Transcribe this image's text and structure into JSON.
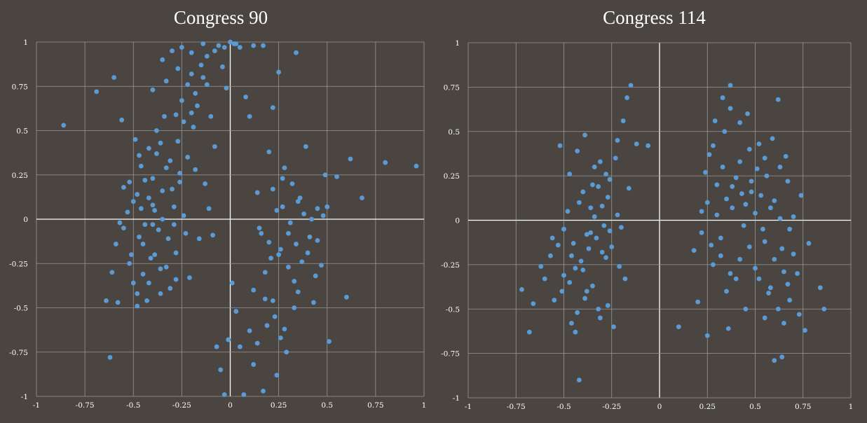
{
  "colors": {
    "background": "#4a4541",
    "grid": "#9b9692",
    "axis_zero": "#ffffff",
    "point": "#5b9bd5",
    "text": "#ffffff"
  },
  "chart_data": [
    {
      "type": "scatter",
      "title": "Congress 90",
      "xlim": [
        -1,
        1
      ],
      "ylim": [
        -1,
        1
      ],
      "x_ticks": [
        -1,
        -0.75,
        -0.5,
        -0.25,
        0,
        0.25,
        0.5,
        0.75,
        1
      ],
      "x_tick_labels": [
        "-1",
        "-0.75",
        "-0.5",
        "-0.25",
        "0",
        "0.25",
        "0.5",
        "0.75",
        "1"
      ],
      "y_ticks": [
        -1,
        -0.75,
        -0.5,
        -0.25,
        0,
        0.25,
        0.5,
        0.75,
        1
      ],
      "y_tick_labels": [
        "-1",
        "-0.75",
        "-0.5",
        "-0.25",
        "0",
        "0.25",
        "0.5",
        "0.75",
        "1"
      ],
      "grid": true,
      "points": [
        [
          -0.86,
          0.53
        ],
        [
          -0.69,
          0.72
        ],
        [
          -0.6,
          0.8
        ],
        [
          -0.62,
          -0.78
        ],
        [
          -0.64,
          -0.46
        ],
        [
          -0.61,
          -0.3
        ],
        [
          -0.59,
          -0.14
        ],
        [
          -0.55,
          -0.05
        ],
        [
          -0.56,
          0.56
        ],
        [
          -0.58,
          -0.47
        ],
        [
          -0.52,
          0.21
        ],
        [
          -0.5,
          0.1
        ],
        [
          -0.49,
          0.45
        ],
        [
          -0.47,
          -0.1
        ],
        [
          -0.45,
          -0.31
        ],
        [
          -0.43,
          -0.46
        ],
        [
          -0.4,
          0.23
        ],
        [
          -0.38,
          0.37
        ],
        [
          -0.36,
          -0.28
        ],
        [
          -0.34,
          0.58
        ],
        [
          -0.32,
          -0.11
        ],
        [
          -0.3,
          0.17
        ],
        [
          -0.28,
          -0.19
        ],
        [
          -0.27,
          0.44
        ],
        [
          -0.25,
          0.67
        ],
        [
          -0.24,
          0.02
        ],
        [
          -0.21,
          -0.33
        ],
        [
          -0.2,
          0.82
        ],
        [
          -0.18,
          0.28
        ],
        [
          -0.16,
          -0.11
        ],
        [
          -0.14,
          0.99
        ],
        [
          -0.12,
          0.76
        ],
        [
          -0.1,
          0.58
        ],
        [
          -0.08,
          0.41
        ],
        [
          -0.06,
          0.98
        ],
        [
          -0.04,
          0.86
        ],
        [
          -0.02,
          0.74
        ],
        [
          0.02,
          0.99
        ],
        [
          0.05,
          0.97
        ],
        [
          0.08,
          0.69
        ],
        [
          0.1,
          0.58
        ],
        [
          0.12,
          0.98
        ],
        [
          0.17,
          0.98
        ],
        [
          0.22,
          0.63
        ],
        [
          0.25,
          0.83
        ],
        [
          0.34,
          0.94
        ],
        [
          -0.55,
          0.18
        ],
        [
          -0.53,
          0.04
        ],
        [
          -0.51,
          -0.2
        ],
        [
          -0.5,
          -0.36
        ],
        [
          -0.48,
          -0.42
        ],
        [
          -0.46,
          0.3
        ],
        [
          -0.44,
          -0.03
        ],
        [
          -0.42,
          0.12
        ],
        [
          -0.41,
          -0.22
        ],
        [
          -0.39,
          0.05
        ],
        [
          -0.37,
          -0.06
        ],
        [
          -0.35,
          0.16
        ],
        [
          -0.33,
          0.29
        ],
        [
          -0.31,
          -0.39
        ],
        [
          -0.29,
          0.07
        ],
        [
          -0.26,
          0.21
        ],
        [
          -0.23,
          -0.08
        ],
        [
          -0.22,
          0.35
        ],
        [
          -0.19,
          0.52
        ],
        [
          -0.17,
          0.64
        ],
        [
          -0.13,
          0.2
        ],
        [
          -0.11,
          0.06
        ],
        [
          -0.09,
          -0.09
        ],
        [
          -0.07,
          -0.72
        ],
        [
          -0.05,
          -0.85
        ],
        [
          -0.03,
          -0.99
        ],
        [
          -0.01,
          -0.68
        ],
        [
          0.01,
          -0.36
        ],
        [
          0.03,
          -0.52
        ],
        [
          0.05,
          -0.72
        ],
        [
          0.07,
          -0.99
        ],
        [
          0.1,
          -0.63
        ],
        [
          0.12,
          -0.4
        ],
        [
          0.14,
          0.15
        ],
        [
          0.16,
          -0.08
        ],
        [
          0.18,
          -0.3
        ],
        [
          0.2,
          0.38
        ],
        [
          0.22,
          -0.46
        ],
        [
          0.24,
          0.05
        ],
        [
          0.26,
          -0.17
        ],
        [
          0.27,
          0.23
        ],
        [
          0.29,
          -0.75
        ],
        [
          0.31,
          -0.02
        ],
        [
          0.33,
          -0.35
        ],
        [
          0.35,
          0.1
        ],
        [
          0.37,
          -0.24
        ],
        [
          0.39,
          0.41
        ],
        [
          0.41,
          -0.1
        ],
        [
          0.43,
          -0.47
        ],
        [
          0.45,
          0.06
        ],
        [
          0.47,
          -0.26
        ],
        [
          0.49,
          0.25
        ],
        [
          0.51,
          -0.69
        ],
        [
          0.55,
          0.24
        ],
        [
          0.6,
          -0.44
        ],
        [
          0.62,
          0.34
        ],
        [
          0.68,
          0.12
        ],
        [
          0.8,
          0.32
        ],
        [
          0.96,
          0.3
        ],
        [
          -0.35,
          0.9
        ],
        [
          -0.3,
          0.95
        ],
        [
          -0.25,
          0.97
        ],
        [
          -0.2,
          0.94
        ],
        [
          -0.15,
          0.87
        ],
        [
          -0.12,
          0.92
        ],
        [
          -0.08,
          0.95
        ],
        [
          -0.03,
          0.97
        ],
        [
          0.0,
          1.0
        ],
        [
          0.03,
          0.99
        ],
        [
          -0.4,
          0.73
        ],
        [
          -0.33,
          0.78
        ],
        [
          -0.27,
          0.85
        ],
        [
          -0.22,
          0.76
        ],
        [
          -0.18,
          0.71
        ],
        [
          -0.14,
          0.8
        ],
        [
          -0.28,
          0.59
        ],
        [
          -0.24,
          0.55
        ],
        [
          -0.2,
          0.6
        ],
        [
          -0.38,
          0.5
        ],
        [
          -0.42,
          0.4
        ],
        [
          -0.47,
          0.36
        ],
        [
          -0.36,
          0.43
        ],
        [
          -0.31,
          0.33
        ],
        [
          -0.26,
          0.26
        ],
        [
          -0.44,
          0.22
        ],
        [
          -0.48,
          0.14
        ],
        [
          -0.4,
          0.08
        ],
        [
          -0.35,
          0.0
        ],
        [
          -0.29,
          -0.03
        ],
        [
          -0.45,
          -0.14
        ],
        [
          -0.39,
          -0.2
        ],
        [
          -0.33,
          -0.27
        ],
        [
          -0.28,
          -0.34
        ],
        [
          -0.52,
          -0.25
        ],
        [
          -0.48,
          -0.49
        ],
        [
          -0.42,
          -0.36
        ],
        [
          -0.36,
          -0.42
        ],
        [
          -0.57,
          -0.02
        ],
        [
          -0.46,
          0.06
        ],
        [
          -0.4,
          -0.03
        ],
        [
          0.15,
          -0.05
        ],
        [
          0.2,
          -0.13
        ],
        [
          0.25,
          -0.2
        ],
        [
          0.3,
          -0.27
        ],
        [
          0.35,
          -0.41
        ],
        [
          0.4,
          -0.19
        ],
        [
          0.45,
          -0.12
        ],
        [
          0.22,
          0.17
        ],
        [
          0.28,
          0.29
        ],
        [
          0.32,
          0.2
        ],
        [
          0.36,
          0.12
        ],
        [
          0.42,
          0.0
        ],
        [
          0.18,
          -0.45
        ],
        [
          0.23,
          -0.55
        ],
        [
          0.28,
          -0.62
        ],
        [
          0.33,
          -0.5
        ],
        [
          0.19,
          -0.6
        ],
        [
          0.14,
          -0.7
        ],
        [
          0.24,
          -0.88
        ],
        [
          0.12,
          -0.82
        ],
        [
          0.17,
          -0.97
        ],
        [
          0.26,
          -0.67
        ],
        [
          0.3,
          -0.08
        ],
        [
          0.27,
          0.07
        ],
        [
          0.21,
          -0.22
        ],
        [
          0.34,
          -0.14
        ],
        [
          0.38,
          0.03
        ],
        [
          0.44,
          -0.32
        ],
        [
          0.48,
          0.02
        ],
        [
          0.5,
          0.07
        ]
      ]
    },
    {
      "type": "scatter",
      "title": "Congress 114",
      "xlim": [
        -1,
        1
      ],
      "ylim": [
        -1,
        1
      ],
      "x_ticks": [
        -1,
        -0.75,
        -0.5,
        -0.25,
        0,
        0.25,
        0.5,
        0.75,
        1
      ],
      "x_tick_labels": [
        "-1",
        "-0.75",
        "-0.5",
        "-0.25",
        "0",
        "0.25",
        "0.5",
        "0.75",
        "1"
      ],
      "y_ticks": [
        -1,
        -0.75,
        -0.5,
        -0.25,
        0,
        0.25,
        0.5,
        0.75,
        1
      ],
      "y_tick_labels": [
        "-1",
        "-0.75",
        "-0.5",
        "-0.25",
        "0",
        "0.25",
        "0.5",
        "0.75",
        "1"
      ],
      "grid": true,
      "points": [
        [
          -0.72,
          -0.39
        ],
        [
          -0.68,
          -0.63
        ],
        [
          -0.66,
          -0.47
        ],
        [
          -0.62,
          -0.26
        ],
        [
          -0.6,
          -0.33
        ],
        [
          -0.57,
          -0.2
        ],
        [
          -0.55,
          -0.45
        ],
        [
          -0.53,
          -0.14
        ],
        [
          -0.5,
          -0.31
        ],
        [
          -0.48,
          0.05
        ],
        [
          -0.46,
          -0.58
        ],
        [
          -0.44,
          -0.27
        ],
        [
          -0.42,
          -0.9
        ],
        [
          -0.4,
          0.16
        ],
        [
          -0.38,
          -0.4
        ],
        [
          -0.36,
          -0.07
        ],
        [
          -0.34,
          0.3
        ],
        [
          -0.32,
          -0.5
        ],
        [
          -0.3,
          0.08
        ],
        [
          -0.28,
          -0.21
        ],
        [
          -0.26,
          0.23
        ],
        [
          -0.24,
          -0.6
        ],
        [
          -0.22,
          0.45
        ],
        [
          -0.2,
          -0.04
        ],
        [
          -0.17,
          0.69
        ],
        [
          -0.15,
          0.76
        ],
        [
          -0.12,
          0.43
        ],
        [
          -0.06,
          0.42
        ],
        [
          -0.52,
          0.42
        ],
        [
          -0.47,
          0.26
        ],
        [
          -0.43,
          0.39
        ],
        [
          -0.39,
          0.48
        ],
        [
          -0.35,
          0.2
        ],
        [
          -0.31,
          0.33
        ],
        [
          -0.27,
          0.13
        ],
        [
          -0.23,
          0.35
        ],
        [
          -0.19,
          0.56
        ],
        [
          -0.16,
          0.18
        ],
        [
          -0.56,
          -0.1
        ],
        [
          -0.5,
          -0.05
        ],
        [
          -0.45,
          -0.13
        ],
        [
          -0.41,
          -0.23
        ],
        [
          -0.37,
          -0.16
        ],
        [
          -0.33,
          -0.1
        ],
        [
          -0.29,
          -0.03
        ],
        [
          -0.25,
          -0.15
        ],
        [
          -0.21,
          -0.26
        ],
        [
          -0.18,
          -0.33
        ],
        [
          -0.51,
          -0.4
        ],
        [
          -0.47,
          -0.35
        ],
        [
          -0.43,
          -0.52
        ],
        [
          -0.39,
          -0.44
        ],
        [
          -0.35,
          -0.37
        ],
        [
          -0.31,
          -0.55
        ],
        [
          -0.27,
          -0.48
        ],
        [
          -0.44,
          -0.63
        ],
        [
          -0.38,
          -0.08
        ],
        [
          -0.34,
          0.02
        ],
        [
          -0.3,
          -0.18
        ],
        [
          -0.26,
          -0.06
        ],
        [
          -0.22,
          0.03
        ],
        [
          -0.42,
          0.1
        ],
        [
          -0.36,
          0.07
        ],
        [
          -0.32,
          0.19
        ],
        [
          -0.28,
          0.26
        ],
        [
          -0.46,
          -0.2
        ],
        [
          -0.4,
          -0.28
        ],
        [
          0.1,
          -0.6
        ],
        [
          0.18,
          -0.17
        ],
        [
          0.2,
          -0.46
        ],
        [
          0.22,
          0.05
        ],
        [
          0.25,
          -0.65
        ],
        [
          0.26,
          0.37
        ],
        [
          0.28,
          -0.25
        ],
        [
          0.3,
          0.2
        ],
        [
          0.32,
          -0.1
        ],
        [
          0.34,
          0.5
        ],
        [
          0.36,
          -0.61
        ],
        [
          0.37,
          0.76
        ],
        [
          0.38,
          0.07
        ],
        [
          0.4,
          -0.33
        ],
        [
          0.42,
          0.33
        ],
        [
          0.44,
          -0.03
        ],
        [
          0.46,
          0.6
        ],
        [
          0.48,
          0.16
        ],
        [
          0.5,
          -0.27
        ],
        [
          0.52,
          0.43
        ],
        [
          0.54,
          -0.05
        ],
        [
          0.56,
          0.25
        ],
        [
          0.58,
          -0.38
        ],
        [
          0.6,
          0.11
        ],
        [
          0.62,
          0.68
        ],
        [
          0.64,
          -0.16
        ],
        [
          0.66,
          0.36
        ],
        [
          0.68,
          -0.45
        ],
        [
          0.7,
          0.02
        ],
        [
          0.72,
          -0.3
        ],
        [
          0.74,
          0.14
        ],
        [
          0.76,
          -0.62
        ],
        [
          0.78,
          -0.13
        ],
        [
          0.84,
          -0.38
        ],
        [
          0.86,
          -0.5
        ],
        [
          0.6,
          -0.79
        ],
        [
          0.64,
          -0.77
        ],
        [
          0.29,
          0.56
        ],
        [
          0.33,
          0.69
        ],
        [
          0.37,
          0.63
        ],
        [
          0.42,
          0.55
        ],
        [
          0.47,
          0.4
        ],
        [
          0.51,
          0.29
        ],
        [
          0.55,
          0.35
        ],
        [
          0.59,
          0.46
        ],
        [
          0.63,
          0.3
        ],
        [
          0.67,
          0.22
        ],
        [
          0.25,
          0.1
        ],
        [
          0.3,
          0.03
        ],
        [
          0.35,
          0.12
        ],
        [
          0.4,
          0.24
        ],
        [
          0.45,
          0.09
        ],
        [
          0.5,
          0.04
        ],
        [
          0.55,
          -0.12
        ],
        [
          0.6,
          -0.22
        ],
        [
          0.65,
          -0.29
        ],
        [
          0.7,
          -0.19
        ],
        [
          0.22,
          -0.07
        ],
        [
          0.27,
          -0.14
        ],
        [
          0.32,
          -0.2
        ],
        [
          0.37,
          -0.3
        ],
        [
          0.42,
          -0.22
        ],
        [
          0.47,
          -0.15
        ],
        [
          0.52,
          -0.33
        ],
        [
          0.57,
          -0.41
        ],
        [
          0.62,
          -0.5
        ],
        [
          0.67,
          -0.36
        ],
        [
          0.24,
          0.27
        ],
        [
          0.28,
          0.42
        ],
        [
          0.33,
          0.3
        ],
        [
          0.38,
          0.19
        ],
        [
          0.43,
          0.15
        ],
        [
          0.48,
          0.22
        ],
        [
          0.53,
          0.14
        ],
        [
          0.58,
          0.07
        ],
        [
          0.63,
          0.01
        ],
        [
          0.68,
          -0.05
        ],
        [
          0.35,
          -0.4
        ],
        [
          0.45,
          -0.5
        ],
        [
          0.55,
          -0.55
        ],
        [
          0.65,
          -0.58
        ],
        [
          0.73,
          -0.53
        ]
      ]
    }
  ]
}
